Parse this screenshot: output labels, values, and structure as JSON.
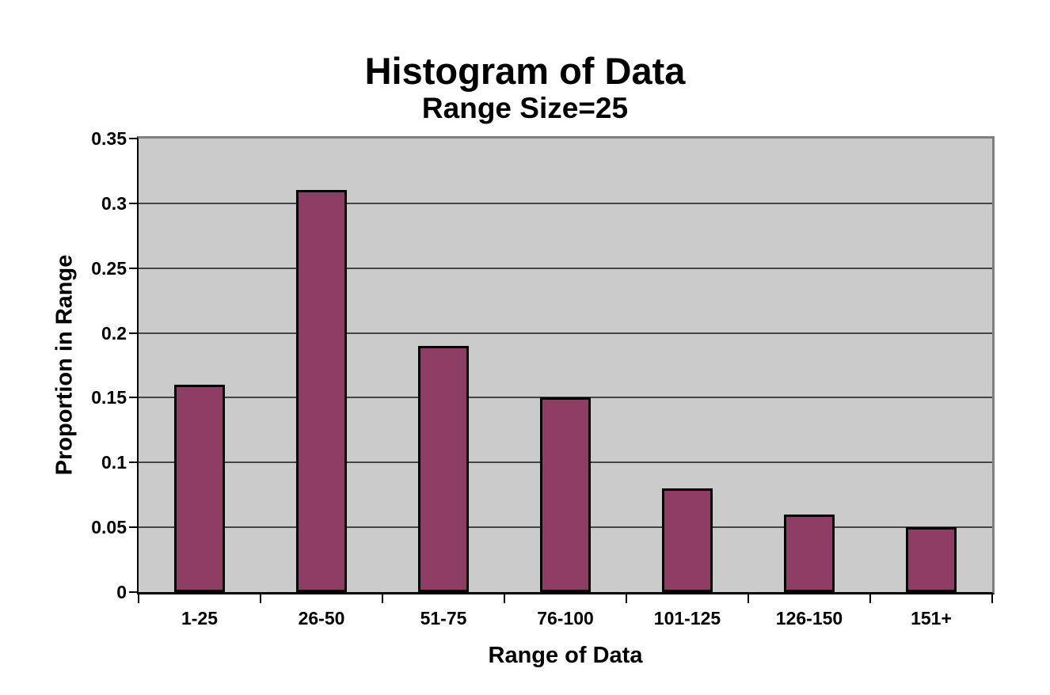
{
  "chart_data": {
    "type": "bar",
    "title": "Histogram of Data",
    "subtitle": "Range Size=25",
    "xlabel": "Range of Data",
    "ylabel": "Proportion in Range",
    "categories": [
      "1-25",
      "26-50",
      "51-75",
      "76-100",
      "101-125",
      "126-150",
      "151+"
    ],
    "values": [
      0.16,
      0.31,
      0.19,
      0.15,
      0.08,
      0.06,
      0.05
    ],
    "ylim": [
      0,
      0.35
    ],
    "ytick_step": 0.05,
    "ytick_labels": [
      "0",
      "0.05",
      "0.1",
      "0.15",
      "0.2",
      "0.25",
      "0.3",
      "0.35"
    ],
    "grid": true,
    "legend": false
  },
  "colors": {
    "bar_fill": "#8e3d64",
    "bar_border": "#000000",
    "plot_background": "#cbcbcb",
    "gridline": "#454545",
    "plot_border": "#7f7f7f",
    "axis": "#000000",
    "text": "#000000",
    "page_background": "#ffffff"
  }
}
